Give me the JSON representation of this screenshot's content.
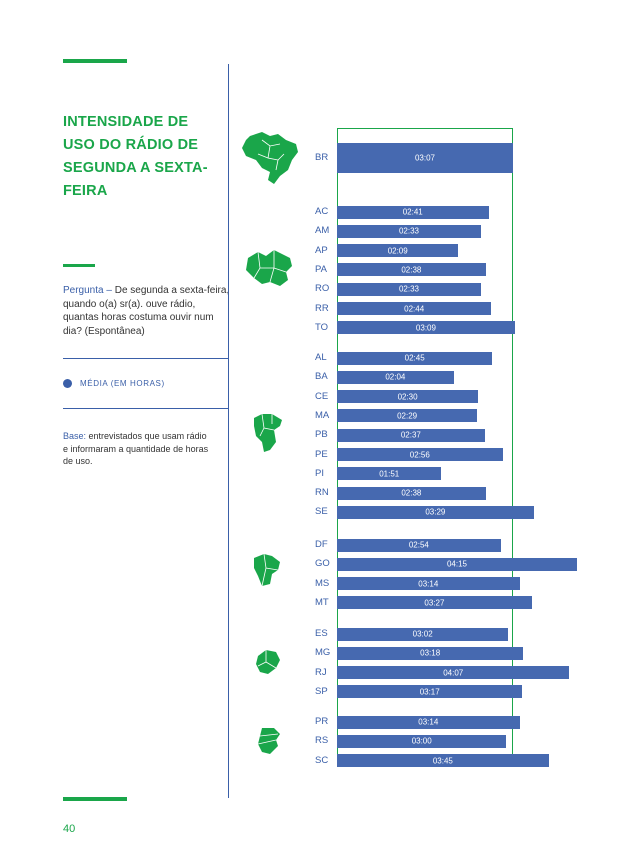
{
  "title": "INTENSIDADE DE USO DO RÁDIO DE SEGUNDA A SEXTA-FEIRA",
  "question": {
    "label": "Pergunta –",
    "text": "De segunda a sexta-feira, quando o(a) sr(a). ouve rádio, quantas horas costuma ouvir num dia? (Espontânea)"
  },
  "legend": {
    "label": "MÉDIA (EM HORAS)"
  },
  "base": {
    "label": "Base:",
    "text": "entrevistados que usam rádio e informaram a quantidade de horas de uso."
  },
  "page_number": "40",
  "colors": {
    "accent_green": "#1aa64a",
    "bar_blue": "#4669b0",
    "text_blue": "#3a5fa8"
  },
  "chart_data": {
    "type": "bar",
    "orientation": "horizontal",
    "title": "INTENSIDADE DE USO DO RÁDIO DE SEGUNDA A SEXTA-FEIRA",
    "unit": "horas (hh:mm)",
    "reference": {
      "label": "BR",
      "value": "03:07"
    },
    "groups": [
      {
        "region": "Brasil",
        "items": [
          {
            "label": "BR",
            "value": "03:07"
          }
        ]
      },
      {
        "region": "Norte",
        "items": [
          {
            "label": "AC",
            "value": "02:41"
          },
          {
            "label": "AM",
            "value": "02:33"
          },
          {
            "label": "AP",
            "value": "02:09"
          },
          {
            "label": "PA",
            "value": "02:38"
          },
          {
            "label": "RO",
            "value": "02:33"
          },
          {
            "label": "RR",
            "value": "02:44"
          },
          {
            "label": "TO",
            "value": "03:09"
          }
        ]
      },
      {
        "region": "Nordeste",
        "items": [
          {
            "label": "AL",
            "value": "02:45"
          },
          {
            "label": "BA",
            "value": "02:04"
          },
          {
            "label": "CE",
            "value": "02:30"
          },
          {
            "label": "MA",
            "value": "02:29"
          },
          {
            "label": "PB",
            "value": "02:37"
          },
          {
            "label": "PE",
            "value": "02:56"
          },
          {
            "label": "PI",
            "value": "01:51"
          },
          {
            "label": "RN",
            "value": "02:38"
          },
          {
            "label": "SE",
            "value": "03:29"
          }
        ]
      },
      {
        "region": "Centro-Oeste",
        "items": [
          {
            "label": "DF",
            "value": "02:54"
          },
          {
            "label": "GO",
            "value": "04:15"
          },
          {
            "label": "MS",
            "value": "03:14"
          },
          {
            "label": "MT",
            "value": "03:27"
          }
        ]
      },
      {
        "region": "Sudeste",
        "items": [
          {
            "label": "ES",
            "value": "03:02"
          },
          {
            "label": "MG",
            "value": "03:18"
          },
          {
            "label": "RJ",
            "value": "04:07"
          },
          {
            "label": "SP",
            "value": "03:17"
          }
        ]
      },
      {
        "region": "Sul",
        "items": [
          {
            "label": "PR",
            "value": "03:14"
          },
          {
            "label": "RS",
            "value": "03:00"
          },
          {
            "label": "SC",
            "value": "03:45"
          }
        ]
      }
    ]
  }
}
